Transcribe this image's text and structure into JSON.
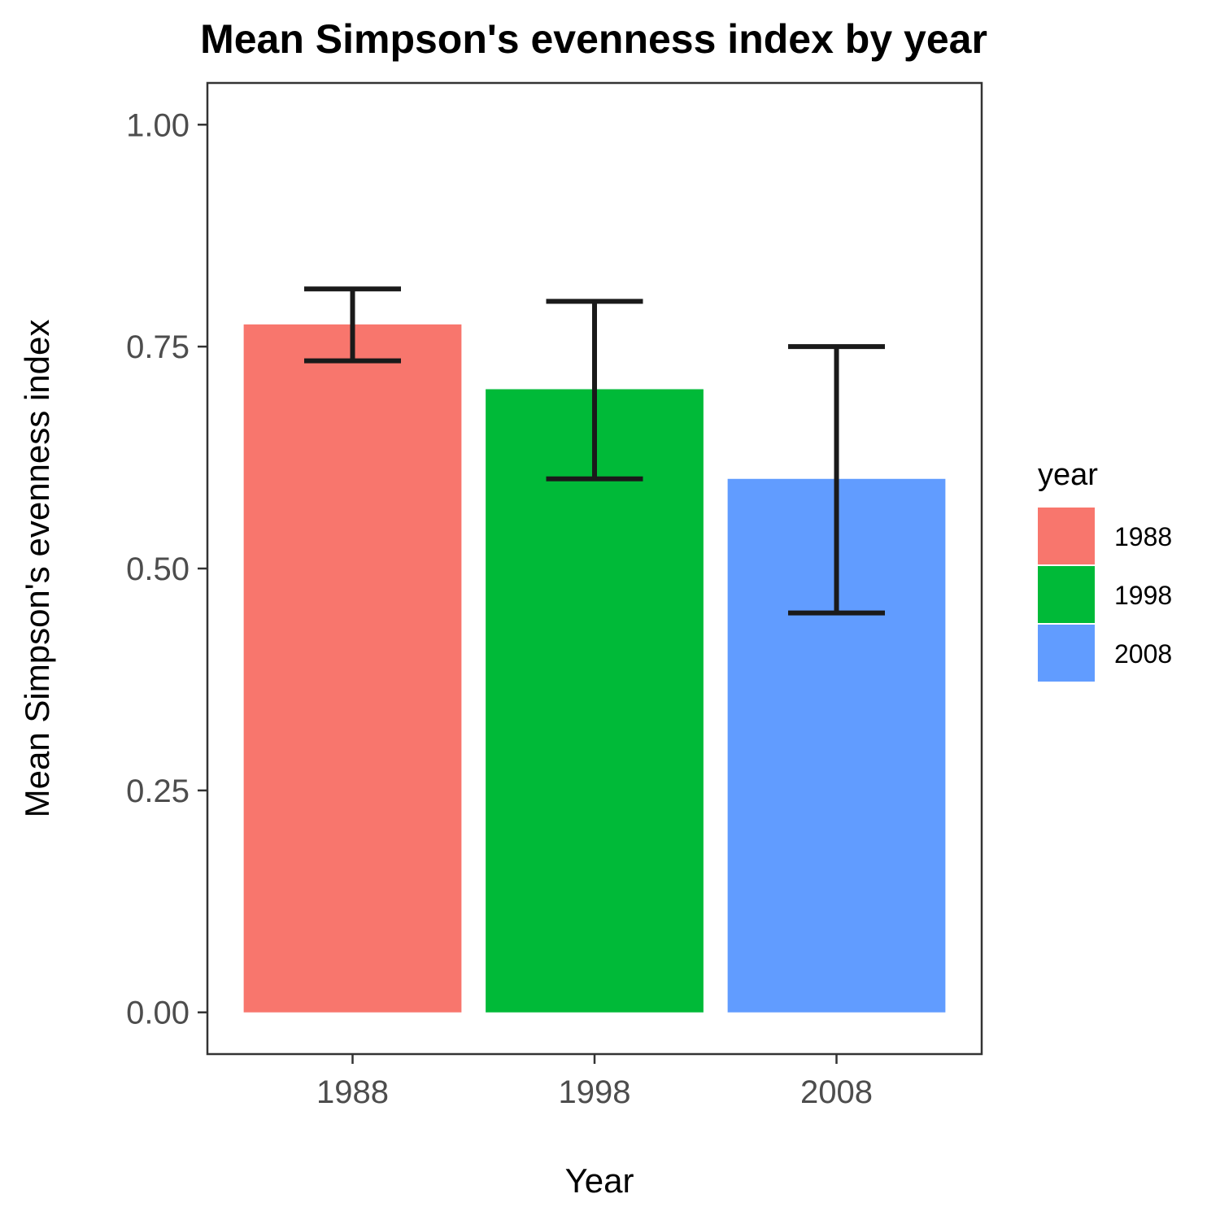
{
  "chart_data": {
    "type": "bar",
    "title": "Mean Simpson's evenness index by year",
    "xlabel": "Year",
    "ylabel": "Mean Simpson's evenness index",
    "categories": [
      "1988",
      "1998",
      "2008"
    ],
    "values": [
      0.775,
      0.702,
      0.601
    ],
    "error_bars": [
      {
        "low": 0.734,
        "high": 0.815
      },
      {
        "low": 0.601,
        "high": 0.801
      },
      {
        "low": 0.45,
        "high": 0.75
      }
    ],
    "colors": [
      "#F8766D",
      "#00BA38",
      "#619CFF"
    ],
    "ylim": [
      -0.047,
      1.047
    ],
    "yticks": [
      "0.00",
      "0.25",
      "0.50",
      "0.75",
      "1.00"
    ],
    "ytick_values": [
      0,
      0.25,
      0.5,
      0.75,
      1.0
    ],
    "legend": {
      "title": "year",
      "entries": [
        "1988",
        "1998",
        "2008"
      ],
      "position": "right"
    },
    "grid": false
  }
}
